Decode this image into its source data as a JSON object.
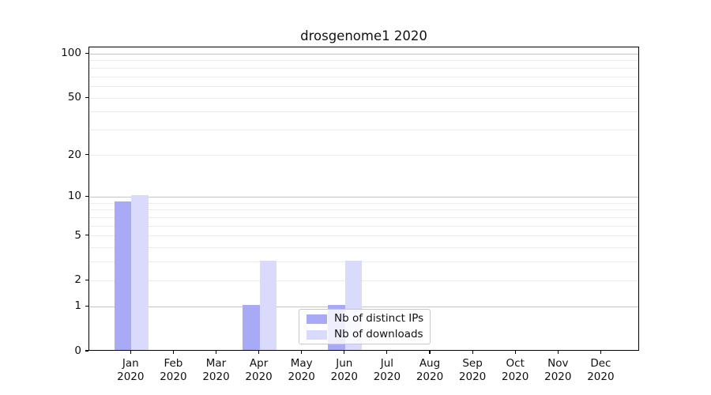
{
  "title": "drosgenome1 2020",
  "chart_data": {
    "type": "bar",
    "title": "drosgenome1 2020",
    "categories": [
      "Jan 2020",
      "Feb 2020",
      "Mar 2020",
      "Apr 2020",
      "May 2020",
      "Jun 2020",
      "Jul 2020",
      "Aug 2020",
      "Sep 2020",
      "Oct 2020",
      "Nov 2020",
      "Dec 2020"
    ],
    "series": [
      {
        "name": "Nb of distinct IPs",
        "color": "#a9aaf5",
        "values": [
          9,
          0,
          0,
          1,
          0,
          1,
          0,
          0,
          0,
          0,
          0,
          0
        ]
      },
      {
        "name": "Nb of downloads",
        "color": "#d9dafc",
        "values": [
          10,
          0,
          0,
          3,
          0,
          3,
          0,
          0,
          0,
          0,
          0,
          0
        ]
      }
    ],
    "xlabel": "",
    "ylabel": "",
    "yscale": "log1p",
    "ylim": [
      0,
      111
    ],
    "yticks": [
      0,
      1,
      2,
      5,
      10,
      20,
      50,
      100
    ],
    "major_gridlines": [
      1,
      10,
      100
    ],
    "minor_gridlines": [
      2,
      3,
      4,
      5,
      6,
      7,
      8,
      9,
      20,
      30,
      40,
      50,
      60,
      70,
      80,
      90
    ],
    "grid": true,
    "legend_position": "lower-center"
  },
  "colors": {
    "major_grid": "#c4c4c4",
    "minor_grid": "#ebebeb",
    "axis": "#000000",
    "text": "#111111",
    "legend_border": "#c8c8c8"
  }
}
